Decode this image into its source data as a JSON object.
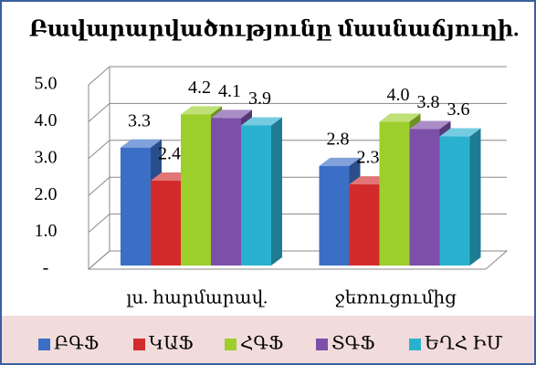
{
  "chart_data": {
    "type": "bar3d",
    "title": "Բավարարվածությունը մասնաճյուղի.",
    "categories": [
      "լս. հարմարավ.",
      "ջեռուցումից"
    ],
    "series": [
      {
        "name": "ԲԳՖ",
        "color": "#3b6fc6",
        "values": [
          3.3,
          2.8
        ],
        "value_labels": [
          "3.3",
          "2.8"
        ]
      },
      {
        "name": "ԿԱՖ",
        "color": "#d32b2b",
        "values": [
          2.4,
          2.3
        ],
        "value_labels": [
          "2.4",
          "2.3"
        ]
      },
      {
        "name": "ՀԳՖ",
        "color": "#9ccf2c",
        "values": [
          4.2,
          4.0
        ],
        "value_labels": [
          "4.2",
          "4.0"
        ]
      },
      {
        "name": "ՏԳՖ",
        "color": "#7c4fa9",
        "values": [
          4.1,
          3.8
        ],
        "value_labels": [
          "4.1",
          "3.8"
        ]
      },
      {
        "name": "ԵՂՀ ԻՄ",
        "color": "#2bb1d0",
        "values": [
          3.9,
          3.6
        ],
        "value_labels": [
          "3.9",
          "3.6"
        ]
      }
    ],
    "ylim": [
      0,
      5
    ],
    "yticks": [
      {
        "value": 0,
        "label": "-"
      },
      {
        "value": 1,
        "label": "1.0"
      },
      {
        "value": 2,
        "label": "2.0"
      },
      {
        "value": 3,
        "label": "3.0"
      },
      {
        "value": 4,
        "label": "4.0"
      },
      {
        "value": 5,
        "label": "5.0"
      }
    ],
    "grid": true
  }
}
